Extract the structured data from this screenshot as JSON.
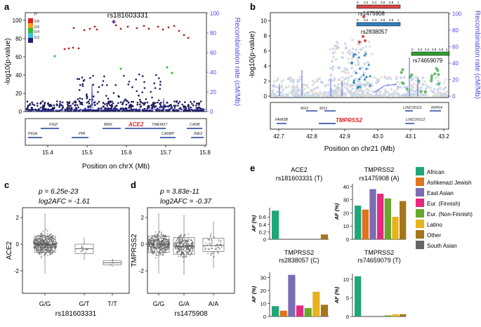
{
  "panels": {
    "a": {
      "letter": "a",
      "snp_label": "rs181603331",
      "ylabel": "-log10(p-value)",
      "y2label": "Recombination rate (cM/Mb)",
      "xlabel": "Position on chrX (Mb)",
      "yticks": [
        "0",
        "20",
        "40",
        "60",
        "80",
        "100"
      ],
      "y2ticks": [
        "0",
        "20",
        "40",
        "60",
        "80",
        "100"
      ],
      "xticks": [
        "15.4",
        "15.5",
        "15.6",
        "15.7",
        "15.8"
      ],
      "legend_title": "r²",
      "legend_labels": [
        "0.8",
        "0.6",
        "0.4",
        "0.2"
      ],
      "genes": [
        "FIGF",
        "PIGA",
        "PIR",
        "BMX",
        "ACE2",
        "TMEM27",
        "CA5B",
        "CA5BP",
        "INE2"
      ]
    },
    "b": {
      "letter": "b",
      "ylabel": "-log10(p-value)",
      "y2label": "Recombination rate (cM/Mb)",
      "xlabel": "Position on chr21 (Mb)",
      "yticks": [
        "0",
        "2",
        "4",
        "6",
        "8",
        "10"
      ],
      "y2ticks": [
        "0",
        "20",
        "40",
        "60",
        "80",
        "100"
      ],
      "xticks": [
        "42.7",
        "42.8",
        "42.9",
        "43.0",
        "43.1",
        "43.2"
      ],
      "snps": [
        "rs1475908",
        "rs2838057",
        "rs74659079"
      ],
      "ld_ticks": [
        "0",
        "0.2",
        "0.4",
        "0.6",
        "0.8",
        "1"
      ],
      "genes": [
        "MX2",
        "MX1",
        "FAM3B",
        "TMPRSS2",
        "LINC00111",
        "RIPK4",
        "LINC00112"
      ]
    },
    "c": {
      "letter": "c",
      "pvalue": "p = 6.25e-23",
      "fc": "log2AFC = -1.61",
      "ylabel": "ACE2",
      "xlabel": "rs181603331",
      "genotypes": [
        "G/G",
        "G/T",
        "T/T"
      ],
      "yticks": [
        "-2",
        "0",
        "2"
      ]
    },
    "d": {
      "letter": "d",
      "pvalue": "p = 3.83e-11",
      "fc": "log2AFC = -0.37",
      "ylabel": "TMPRSS2",
      "xlabel": "rs1475908",
      "genotypes": [
        "G/G",
        "G/A",
        "A/A"
      ],
      "yticks": [
        "-2",
        "0",
        "2"
      ]
    },
    "e": {
      "letter": "e",
      "af_label": "AF (%)",
      "legend": [
        {
          "name": "African",
          "color": "#1fa67a"
        },
        {
          "name": "Ashkenazi Jewish",
          "color": "#e0731c"
        },
        {
          "name": "East Asian",
          "color": "#7b6cb4"
        },
        {
          "name": "Eur. (Finnish)",
          "color": "#e6287f"
        },
        {
          "name": "Eur. (Non-Finnish)",
          "color": "#69a82d"
        },
        {
          "name": "Latino",
          "color": "#e7b21c"
        },
        {
          "name": "Other",
          "color": "#a3761e"
        },
        {
          "name": "South Asian",
          "color": "#666666"
        }
      ]
    }
  },
  "chart_data": [
    {
      "type": "bar",
      "gene": "ACE2",
      "snp": "rs181603331 (T)",
      "categories": [
        "African",
        "Ashkenazi Jewish",
        "East Asian",
        "Eur. (Finnish)",
        "Eur. (Non-Finnish)",
        "Latino",
        "Other"
      ],
      "values": [
        0.77,
        0,
        0,
        0,
        0,
        0,
        0.13
      ],
      "ylim": [
        0,
        0.85
      ],
      "yticks": [
        0,
        0.2,
        0.4,
        0.6
      ],
      "ylabel": "AF (%)"
    },
    {
      "type": "bar",
      "gene": "TMPRSS2",
      "snp": "rs1475908 (A)",
      "categories": [
        "African",
        "Ashkenazi Jewish",
        "East Asian",
        "Eur. (Finnish)",
        "Eur. (Non-Finnish)",
        "Latino",
        "Other"
      ],
      "values": [
        25.5,
        22.5,
        38,
        34.5,
        31,
        17,
        29
      ],
      "ylim": [
        0,
        42
      ],
      "yticks": [
        0,
        10,
        20,
        30,
        40
      ],
      "ylabel": "AF (%)"
    },
    {
      "type": "bar",
      "gene": "TMPRSS2",
      "snp": "rs2838057 (C)",
      "categories": [
        "African",
        "Ashkenazi Jewish",
        "East Asian",
        "Eur. (Finnish)",
        "Eur. (Non-Finnish)",
        "Latino",
        "Other"
      ],
      "values": [
        8,
        4.5,
        32,
        8.5,
        6.5,
        19,
        9
      ],
      "ylim": [
        0,
        34
      ],
      "yticks": [
        0,
        10,
        20,
        30
      ],
      "ylabel": "AF (%)"
    },
    {
      "type": "bar",
      "gene": "TMPRSS2",
      "snp": "rs74659079 (T)",
      "categories": [
        "African",
        "Ashkenazi Jewish",
        "East Asian",
        "Eur. (Finnish)",
        "Eur. (Non-Finnish)",
        "Latino",
        "Other"
      ],
      "values": [
        10.8,
        0,
        0,
        0,
        0.3,
        0.6,
        0.6
      ],
      "ylim": [
        0,
        11.5
      ],
      "yticks": [
        0,
        5,
        10
      ],
      "ylabel": "AF (%)"
    }
  ]
}
